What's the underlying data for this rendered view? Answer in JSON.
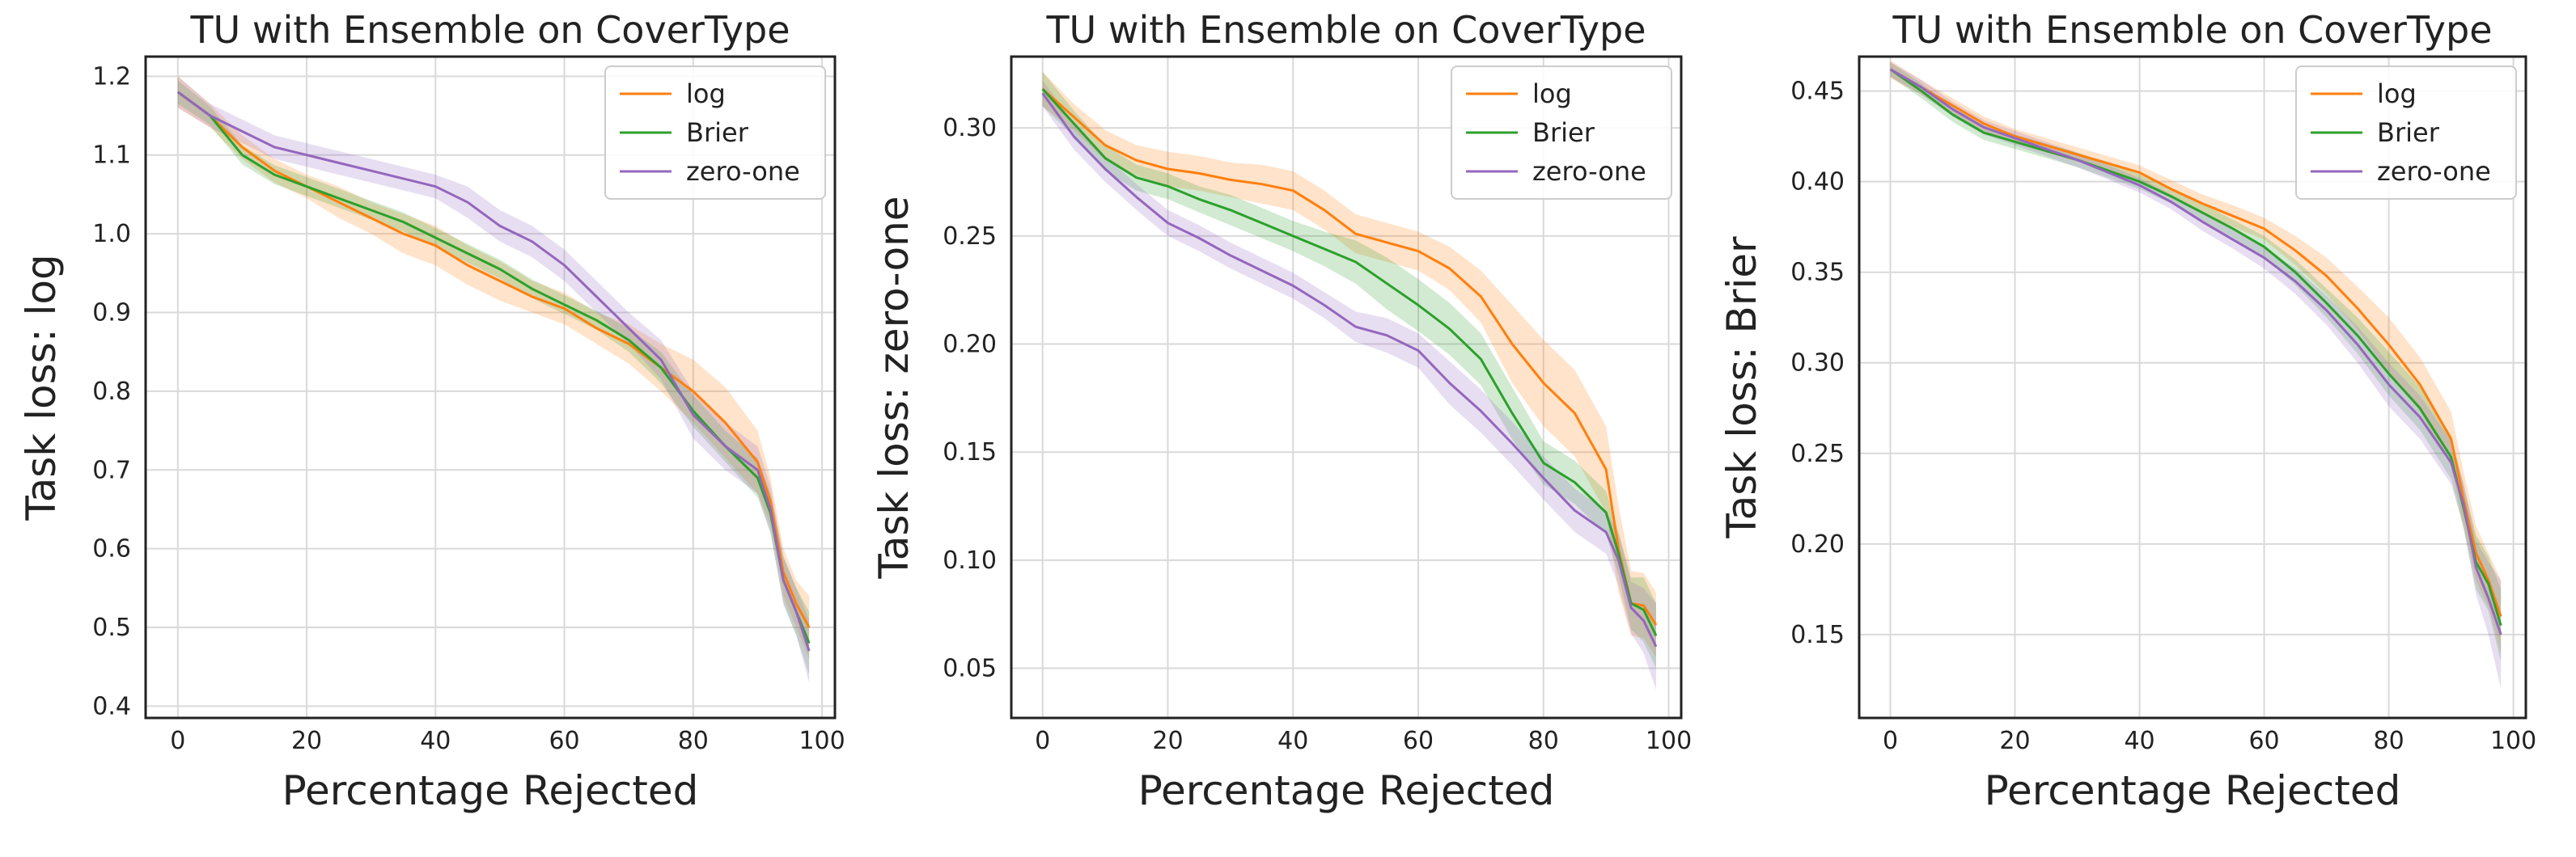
{
  "chart_data": [
    {
      "type": "line",
      "title": "TU with Ensemble on CoverType",
      "xlabel": "Percentage Rejected",
      "ylabel": "Task loss: log",
      "xlim": [
        -5,
        102
      ],
      "ylim": [
        0.385,
        1.225
      ],
      "xticks": [
        0,
        20,
        40,
        60,
        80,
        100
      ],
      "xtick_labels": [
        "0",
        "20",
        "40",
        "60",
        "80",
        "100"
      ],
      "yticks": [
        0.4,
        0.5,
        0.6,
        0.7,
        0.8,
        0.9,
        1.0,
        1.1,
        1.2
      ],
      "ytick_labels": [
        "0.4",
        "0.5",
        "0.6",
        "0.7",
        "0.8",
        "0.9",
        "1.0",
        "1.1",
        "1.2"
      ],
      "grid": true,
      "legend_position": "top-right",
      "x": [
        0,
        5,
        10,
        15,
        20,
        25,
        30,
        35,
        40,
        45,
        50,
        55,
        60,
        65,
        70,
        75,
        80,
        85,
        90,
        92,
        94,
        96,
        98
      ],
      "series": [
        {
          "name": "log",
          "color": "#ff7f0e",
          "values": [
            1.18,
            1.15,
            1.11,
            1.08,
            1.06,
            1.04,
            1.02,
            1.0,
            0.985,
            0.96,
            0.94,
            0.92,
            0.905,
            0.88,
            0.86,
            0.83,
            0.8,
            0.76,
            0.71,
            0.66,
            0.57,
            0.53,
            0.5
          ],
          "band": [
            0.02,
            0.015,
            0.015,
            0.015,
            0.015,
            0.02,
            0.02,
            0.025,
            0.025,
            0.025,
            0.025,
            0.02,
            0.02,
            0.02,
            0.025,
            0.03,
            0.04,
            0.045,
            0.04,
            0.03,
            0.03,
            0.03,
            0.04
          ]
        },
        {
          "name": "Brier",
          "color": "#2ca02c",
          "values": [
            1.18,
            1.15,
            1.1,
            1.075,
            1.06,
            1.045,
            1.03,
            1.015,
            0.995,
            0.975,
            0.955,
            0.93,
            0.91,
            0.89,
            0.865,
            0.83,
            0.775,
            0.73,
            0.69,
            0.645,
            0.56,
            0.52,
            0.48
          ],
          "band": [
            0.015,
            0.012,
            0.012,
            0.012,
            0.012,
            0.012,
            0.012,
            0.012,
            0.012,
            0.012,
            0.012,
            0.012,
            0.012,
            0.012,
            0.015,
            0.02,
            0.02,
            0.02,
            0.025,
            0.025,
            0.03,
            0.03,
            0.04
          ]
        },
        {
          "name": "zero-one",
          "color": "#9467bd",
          "values": [
            1.18,
            1.15,
            1.13,
            1.11,
            1.1,
            1.09,
            1.08,
            1.07,
            1.06,
            1.04,
            1.01,
            0.99,
            0.96,
            0.92,
            0.88,
            0.84,
            0.77,
            0.73,
            0.7,
            0.65,
            0.56,
            0.52,
            0.47
          ],
          "band": [
            0.02,
            0.015,
            0.015,
            0.015,
            0.015,
            0.015,
            0.015,
            0.015,
            0.015,
            0.02,
            0.02,
            0.02,
            0.02,
            0.02,
            0.02,
            0.025,
            0.03,
            0.03,
            0.03,
            0.03,
            0.03,
            0.03,
            0.04
          ]
        }
      ]
    },
    {
      "type": "line",
      "title": "TU with Ensemble on CoverType",
      "xlabel": "Percentage Rejected",
      "ylabel": "Task loss: zero-one",
      "xlim": [
        -5,
        102
      ],
      "ylim": [
        0.027,
        0.333
      ],
      "xticks": [
        0,
        20,
        40,
        60,
        80,
        100
      ],
      "xtick_labels": [
        "0",
        "20",
        "40",
        "60",
        "80",
        "100"
      ],
      "yticks": [
        0.05,
        0.1,
        0.15,
        0.2,
        0.25,
        0.3
      ],
      "ytick_labels": [
        "0.05",
        "0.10",
        "0.15",
        "0.20",
        "0.25",
        "0.30"
      ],
      "grid": true,
      "legend_position": "top-right",
      "x": [
        0,
        5,
        10,
        15,
        20,
        25,
        30,
        35,
        40,
        45,
        50,
        55,
        60,
        65,
        70,
        75,
        80,
        85,
        90,
        92,
        94,
        96,
        98
      ],
      "series": [
        {
          "name": "log",
          "color": "#ff7f0e",
          "values": [
            0.318,
            0.305,
            0.292,
            0.285,
            0.281,
            0.279,
            0.276,
            0.274,
            0.271,
            0.262,
            0.251,
            0.247,
            0.243,
            0.235,
            0.222,
            0.2,
            0.182,
            0.168,
            0.142,
            0.105,
            0.08,
            0.079,
            0.07
          ],
          "band": [
            0.008,
            0.006,
            0.007,
            0.007,
            0.008,
            0.008,
            0.008,
            0.009,
            0.009,
            0.009,
            0.009,
            0.009,
            0.009,
            0.01,
            0.012,
            0.018,
            0.02,
            0.02,
            0.02,
            0.02,
            0.015,
            0.015,
            0.015
          ]
        },
        {
          "name": "Brier",
          "color": "#2ca02c",
          "values": [
            0.318,
            0.302,
            0.286,
            0.277,
            0.273,
            0.267,
            0.262,
            0.256,
            0.25,
            0.244,
            0.238,
            0.228,
            0.218,
            0.207,
            0.193,
            0.168,
            0.145,
            0.136,
            0.122,
            0.103,
            0.08,
            0.077,
            0.065
          ],
          "band": [
            0.008,
            0.006,
            0.006,
            0.006,
            0.006,
            0.006,
            0.007,
            0.007,
            0.007,
            0.008,
            0.01,
            0.012,
            0.012,
            0.012,
            0.012,
            0.012,
            0.01,
            0.01,
            0.01,
            0.01,
            0.012,
            0.015,
            0.015
          ]
        },
        {
          "name": "zero-one",
          "color": "#9467bd",
          "values": [
            0.316,
            0.296,
            0.281,
            0.268,
            0.256,
            0.249,
            0.241,
            0.234,
            0.227,
            0.218,
            0.208,
            0.204,
            0.197,
            0.182,
            0.169,
            0.154,
            0.138,
            0.123,
            0.113,
            0.1,
            0.078,
            0.072,
            0.06
          ],
          "band": [
            0.006,
            0.006,
            0.006,
            0.006,
            0.006,
            0.006,
            0.006,
            0.006,
            0.006,
            0.006,
            0.007,
            0.008,
            0.008,
            0.01,
            0.01,
            0.01,
            0.01,
            0.01,
            0.01,
            0.012,
            0.012,
            0.015,
            0.02
          ]
        }
      ]
    },
    {
      "type": "line",
      "title": "TU with Ensemble on CoverType",
      "xlabel": "Percentage Rejected",
      "ylabel": "Task loss: Brier",
      "xlim": [
        -5,
        102
      ],
      "ylim": [
        0.104,
        0.469
      ],
      "xticks": [
        0,
        20,
        40,
        60,
        80,
        100
      ],
      "xtick_labels": [
        "0",
        "20",
        "40",
        "60",
        "80",
        "100"
      ],
      "yticks": [
        0.15,
        0.2,
        0.25,
        0.3,
        0.35,
        0.4,
        0.45
      ],
      "ytick_labels": [
        "0.15",
        "0.20",
        "0.25",
        "0.30",
        "0.35",
        "0.40",
        "0.45"
      ],
      "grid": true,
      "legend_position": "top-right",
      "x": [
        0,
        5,
        10,
        15,
        20,
        25,
        30,
        35,
        40,
        45,
        50,
        55,
        60,
        65,
        70,
        75,
        80,
        85,
        90,
        92,
        94,
        96,
        98
      ],
      "series": [
        {
          "name": "log",
          "color": "#ff7f0e",
          "values": [
            0.462,
            0.452,
            0.442,
            0.432,
            0.425,
            0.42,
            0.415,
            0.41,
            0.405,
            0.396,
            0.388,
            0.381,
            0.374,
            0.362,
            0.348,
            0.33,
            0.31,
            0.288,
            0.258,
            0.225,
            0.195,
            0.18,
            0.16
          ],
          "band": [
            0.005,
            0.004,
            0.004,
            0.004,
            0.004,
            0.004,
            0.004,
            0.004,
            0.004,
            0.005,
            0.005,
            0.006,
            0.006,
            0.008,
            0.01,
            0.012,
            0.015,
            0.015,
            0.015,
            0.015,
            0.015,
            0.015,
            0.02
          ]
        },
        {
          "name": "Brier",
          "color": "#2ca02c",
          "values": [
            0.462,
            0.45,
            0.437,
            0.427,
            0.422,
            0.417,
            0.412,
            0.406,
            0.4,
            0.392,
            0.383,
            0.374,
            0.364,
            0.35,
            0.333,
            0.315,
            0.294,
            0.275,
            0.248,
            0.22,
            0.19,
            0.178,
            0.155
          ],
          "band": [
            0.004,
            0.004,
            0.004,
            0.004,
            0.004,
            0.004,
            0.004,
            0.004,
            0.004,
            0.004,
            0.005,
            0.005,
            0.006,
            0.007,
            0.008,
            0.01,
            0.012,
            0.012,
            0.012,
            0.012,
            0.015,
            0.015,
            0.02
          ]
        },
        {
          "name": "zero-one",
          "color": "#9467bd",
          "values": [
            0.462,
            0.452,
            0.44,
            0.43,
            0.424,
            0.418,
            0.412,
            0.405,
            0.398,
            0.389,
            0.378,
            0.368,
            0.358,
            0.345,
            0.329,
            0.31,
            0.288,
            0.27,
            0.245,
            0.222,
            0.187,
            0.17,
            0.15
          ],
          "band": [
            0.004,
            0.004,
            0.004,
            0.004,
            0.004,
            0.004,
            0.004,
            0.004,
            0.004,
            0.004,
            0.005,
            0.005,
            0.006,
            0.007,
            0.008,
            0.01,
            0.012,
            0.012,
            0.012,
            0.012,
            0.015,
            0.02,
            0.03
          ]
        }
      ]
    }
  ]
}
